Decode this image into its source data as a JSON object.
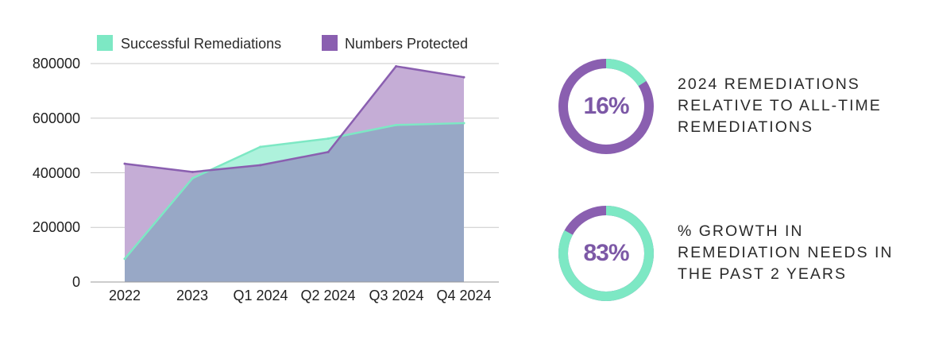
{
  "chart_data": {
    "type": "area",
    "categories": [
      "2022",
      "2023",
      "Q1 2024",
      "Q2 2024",
      "Q3 2024",
      "Q4 2024"
    ],
    "series": [
      {
        "name": "Successful Remediations",
        "values": [
          85000,
          380000,
          495000,
          525000,
          575000,
          582000
        ],
        "color": "#7de8c4"
      },
      {
        "name": "Numbers Protected",
        "values": [
          433000,
          403000,
          428000,
          476000,
          790000,
          750000
        ],
        "color": "#8a5fb0"
      }
    ],
    "overlap_color": "#98a8c6",
    "yticks": [
      "0",
      "200000",
      "400000",
      "600000",
      "800000"
    ],
    "ylim": [
      0,
      800000
    ],
    "grid": true,
    "legend": "top",
    "xlabel": "",
    "ylabel": ""
  },
  "stats": [
    {
      "value": "16%",
      "fraction": 0.16,
      "text": "2024 REMEDIATIONS RELATIVE TO ALL-TIME REMEDIATIONS",
      "highlight_color": "#7de8c4",
      "base_color": "#8a5fb0"
    },
    {
      "value": "83%",
      "fraction": 0.83,
      "text": "% GROWTH IN REMEDIATION NEEDS IN THE PAST 2 YEARS",
      "highlight_color": "#7de8c4",
      "base_color": "#8a5fb0"
    }
  ]
}
